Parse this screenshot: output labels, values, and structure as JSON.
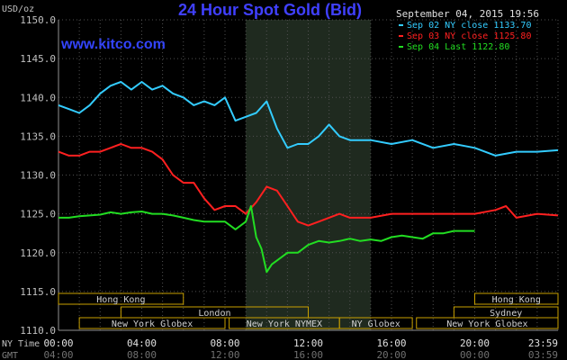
{
  "chart_data": {
    "type": "line",
    "title": "24 Hour Spot Gold (Bid)",
    "website": "www.kitco.com",
    "timestamp": "September 04, 2015 19:56",
    "ylabel": "USD/oz",
    "ylim": [
      1110,
      1150
    ],
    "y_ticks": [
      "1110.0",
      "1115.0",
      "1120.0",
      "1125.0",
      "1130.0",
      "1135.0",
      "1140.0",
      "1145.0",
      "1150.0"
    ],
    "xlim": [
      0,
      24
    ],
    "x_row_labels": [
      "NY Time",
      "GMT"
    ],
    "x_ticks_ny": [
      "00:00",
      "04:00",
      "08:00",
      "12:00",
      "16:00",
      "20:00",
      "23:59"
    ],
    "x_ticks_gmt": [
      "04:00",
      "08:00",
      "12:00",
      "16:00",
      "20:00",
      "00:00",
      "03:59"
    ],
    "grid": true,
    "legend_position": "top-right",
    "highlight_band_hours": [
      9,
      15
    ],
    "series": [
      {
        "name": "Sep 02 NY close 1133.70",
        "color": "#33ccff",
        "x": [
          0,
          0.5,
          1,
          1.5,
          2,
          2.5,
          3,
          3.5,
          4,
          4.5,
          5,
          5.5,
          6,
          6.5,
          7,
          7.5,
          8,
          8.5,
          9,
          9.5,
          10,
          10.5,
          11,
          11.5,
          12,
          12.5,
          13,
          13.5,
          14,
          15,
          16,
          17,
          18,
          19,
          20,
          21,
          22,
          23,
          24
        ],
        "values": [
          1139,
          1138.5,
          1138,
          1139,
          1140.5,
          1141.5,
          1142,
          1141,
          1142,
          1141,
          1141.5,
          1140.5,
          1140,
          1139,
          1139.5,
          1139,
          1140,
          1137,
          1137.5,
          1138,
          1139.5,
          1136,
          1133.5,
          1134,
          1134,
          1135,
          1136.5,
          1135,
          1134.5,
          1134.5,
          1134,
          1134.5,
          1133.5,
          1134,
          1133.5,
          1132.5,
          1133,
          1133,
          1133.2
        ]
      },
      {
        "name": "Sep 03 NY close 1125.80",
        "color": "#ff2020",
        "x": [
          0,
          0.5,
          1,
          1.5,
          2,
          2.5,
          3,
          3.5,
          4,
          4.5,
          5,
          5.5,
          6,
          6.5,
          7,
          7.5,
          8,
          8.5,
          9,
          9.5,
          10,
          10.5,
          11,
          11.5,
          12,
          12.5,
          13,
          13.5,
          14,
          15,
          16,
          17,
          18,
          19,
          20,
          21,
          21.5,
          22,
          23,
          24
        ],
        "values": [
          1133,
          1132.5,
          1132.5,
          1133,
          1133,
          1133.5,
          1134,
          1133.5,
          1133.5,
          1133,
          1132,
          1130,
          1129,
          1129,
          1127,
          1125.5,
          1126,
          1126,
          1125,
          1126.5,
          1128.5,
          1128,
          1126,
          1124,
          1123.5,
          1124,
          1124.5,
          1125,
          1124.5,
          1124.5,
          1125,
          1125,
          1125,
          1125,
          1125,
          1125.5,
          1126,
          1124.5,
          1125,
          1124.8
        ]
      },
      {
        "name": "Sep 04 Last 1122.80",
        "color": "#22dd22",
        "x": [
          0,
          0.5,
          1,
          1.5,
          2,
          2.5,
          3,
          3.5,
          4,
          4.5,
          5,
          5.5,
          6,
          6.5,
          7,
          7.5,
          8,
          8.5,
          9,
          9.25,
          9.5,
          9.75,
          10,
          10.25,
          10.5,
          11,
          11.5,
          12,
          12.5,
          13,
          13.5,
          14,
          14.5,
          15,
          15.5,
          16,
          16.5,
          17,
          17.5,
          18,
          18.5,
          19,
          19.5,
          20
        ],
        "values": [
          1124.5,
          1124.5,
          1124.7,
          1124.8,
          1124.9,
          1125.2,
          1125,
          1125.2,
          1125.3,
          1125,
          1125,
          1124.8,
          1124.5,
          1124.2,
          1124,
          1124,
          1124,
          1123,
          1124,
          1126,
          1122,
          1120.5,
          1117.5,
          1118.5,
          1119,
          1120,
          1120,
          1121,
          1121.5,
          1121.3,
          1121.5,
          1121.8,
          1121.5,
          1121.7,
          1121.5,
          1122,
          1122.2,
          1122,
          1121.8,
          1122.5,
          1122.5,
          1122.8,
          1122.8,
          1122.8
        ]
      }
    ],
    "market_sessions": [
      {
        "name": "Hong Kong",
        "start": 0,
        "end": 6,
        "row": 0
      },
      {
        "name": "London",
        "start": 3,
        "end": 12,
        "row": 1
      },
      {
        "name": "New York Globex",
        "start": 1,
        "end": 8,
        "row": 2
      },
      {
        "name": "New York NYMEX",
        "start": 8.2,
        "end": 13.5,
        "row": 2
      },
      {
        "name": "NY Globex",
        "start": 13.5,
        "end": 17,
        "row": 2
      },
      {
        "name": "Sydney",
        "start": 19,
        "end": 24,
        "row": 1
      },
      {
        "name": "Hong Kong",
        "start": 20,
        "end": 24,
        "row": 0
      },
      {
        "name": "New York Globex",
        "start": 17.2,
        "end": 24,
        "row": 2
      }
    ]
  }
}
